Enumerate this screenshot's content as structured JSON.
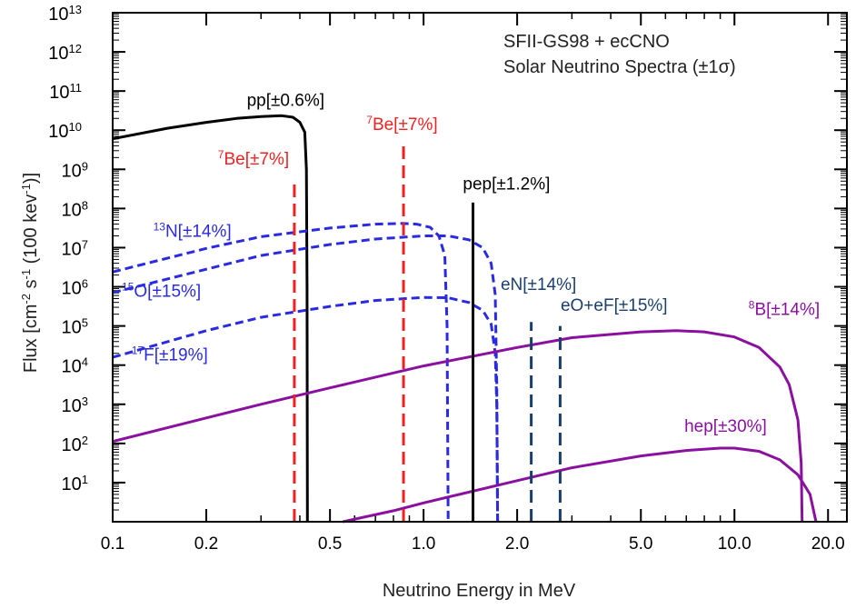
{
  "chart_data": {
    "type": "line",
    "title_lines": [
      "SFII-GS98 + ecCNO",
      "Solar Neutrino Spectra (±1σ)"
    ],
    "xlabel": "Neutrino Energy in MeV",
    "ylabel": "Flux [cm-2 s-1 (100 kev-1)]",
    "xscale": "log",
    "yscale": "log",
    "xlim": [
      0.1,
      23
    ],
    "ylim": [
      1,
      10000000000000
    ],
    "x_ticks": [
      {
        "v": 0.1,
        "label": "0.1"
      },
      {
        "v": 0.2,
        "label": "0.2"
      },
      {
        "v": 0.5,
        "label": "0.5"
      },
      {
        "v": 1.0,
        "label": "1.0"
      },
      {
        "v": 2.0,
        "label": "2.0"
      },
      {
        "v": 5.0,
        "label": "5.0"
      },
      {
        "v": 10.0,
        "label": "10.0"
      },
      {
        "v": 20.0,
        "label": "20.0"
      }
    ],
    "y_ticks": [
      {
        "v": 1,
        "base": "10",
        "exp": "1"
      },
      {
        "v": 2,
        "base": "10",
        "exp": "2"
      },
      {
        "v": 3,
        "base": "10",
        "exp": "3"
      },
      {
        "v": 4,
        "base": "10",
        "exp": "4"
      },
      {
        "v": 5,
        "base": "10",
        "exp": "5"
      },
      {
        "v": 6,
        "base": "10",
        "exp": "6"
      },
      {
        "v": 7,
        "base": "10",
        "exp": "7"
      },
      {
        "v": 8,
        "base": "10",
        "exp": "8"
      },
      {
        "v": 9,
        "base": "10",
        "exp": "9"
      },
      {
        "v": 10,
        "base": "10",
        "exp": "10"
      },
      {
        "v": 11,
        "base": "10",
        "exp": "11"
      },
      {
        "v": 12,
        "base": "10",
        "exp": "12"
      },
      {
        "v": 13,
        "base": "10",
        "exp": "13"
      }
    ],
    "colors": {
      "pp": "#000000",
      "be7": "#ee2222",
      "pep": "#000000",
      "cno": "#2a2ae0",
      "ec": "#1a3f6f",
      "b8": "#8b10a0"
    },
    "series": [
      {
        "key": "pp",
        "style": "solid",
        "log_points": [
          [
            0.1,
            9.78
          ],
          [
            0.15,
            10.05
          ],
          [
            0.2,
            10.2
          ],
          [
            0.25,
            10.3
          ],
          [
            0.3,
            10.35
          ],
          [
            0.35,
            10.37
          ],
          [
            0.38,
            10.33
          ],
          [
            0.4,
            10.2
          ],
          [
            0.415,
            9.95
          ],
          [
            0.42,
            9.0
          ],
          [
            0.422,
            6.0
          ],
          [
            0.423,
            0.0
          ]
        ]
      },
      {
        "key": "cno",
        "style": "dashed",
        "log_points": [
          [
            0.1,
            6.38
          ],
          [
            0.2,
            6.98
          ],
          [
            0.3,
            7.28
          ],
          [
            0.5,
            7.5
          ],
          [
            0.7,
            7.6
          ],
          [
            0.85,
            7.62
          ],
          [
            0.95,
            7.6
          ],
          [
            1.05,
            7.52
          ],
          [
            1.12,
            7.3
          ],
          [
            1.17,
            6.8
          ],
          [
            1.19,
            5.0
          ],
          [
            1.2,
            0.0
          ]
        ]
      },
      {
        "key": "cno",
        "style": "dashed",
        "log_points": [
          [
            0.1,
            5.85
          ],
          [
            0.2,
            6.45
          ],
          [
            0.3,
            6.8
          ],
          [
            0.5,
            7.08
          ],
          [
            0.7,
            7.22
          ],
          [
            1.0,
            7.3
          ],
          [
            1.2,
            7.3
          ],
          [
            1.4,
            7.2
          ],
          [
            1.55,
            7.0
          ],
          [
            1.65,
            6.6
          ],
          [
            1.7,
            5.8
          ],
          [
            1.72,
            3.5
          ],
          [
            1.73,
            0.0
          ]
        ]
      },
      {
        "key": "cno",
        "style": "dashed",
        "log_points": [
          [
            0.1,
            4.2
          ],
          [
            0.2,
            4.88
          ],
          [
            0.3,
            5.22
          ],
          [
            0.5,
            5.5
          ],
          [
            0.7,
            5.65
          ],
          [
            1.0,
            5.73
          ],
          [
            1.2,
            5.72
          ],
          [
            1.4,
            5.6
          ],
          [
            1.55,
            5.4
          ],
          [
            1.65,
            5.05
          ],
          [
            1.7,
            4.3
          ],
          [
            1.72,
            3.0
          ],
          [
            1.73,
            0.0
          ]
        ]
      },
      {
        "key": "b8",
        "style": "solid",
        "log_points": [
          [
            0.1,
            2.05
          ],
          [
            0.2,
            2.65
          ],
          [
            0.3,
            3.0
          ],
          [
            0.5,
            3.42
          ],
          [
            1.0,
            3.98
          ],
          [
            2.0,
            4.45
          ],
          [
            3.0,
            4.7
          ],
          [
            5.0,
            4.85
          ],
          [
            6.5,
            4.88
          ],
          [
            8.0,
            4.85
          ],
          [
            10.0,
            4.72
          ],
          [
            12.0,
            4.45
          ],
          [
            14.0,
            3.95
          ],
          [
            15.0,
            3.5
          ],
          [
            16.0,
            2.6
          ],
          [
            16.4,
            1.5
          ],
          [
            16.5,
            0.0
          ]
        ]
      },
      {
        "key": "b8",
        "style": "solid",
        "log_points": [
          [
            0.55,
            0.0
          ],
          [
            0.8,
            0.28
          ],
          [
            1.0,
            0.48
          ],
          [
            2.0,
            1.05
          ],
          [
            3.0,
            1.38
          ],
          [
            5.0,
            1.68
          ],
          [
            7.0,
            1.82
          ],
          [
            9.0,
            1.88
          ],
          [
            10.0,
            1.88
          ],
          [
            12.0,
            1.8
          ],
          [
            14.0,
            1.58
          ],
          [
            16.0,
            1.2
          ],
          [
            17.5,
            0.7
          ],
          [
            18.3,
            0.0
          ]
        ]
      }
    ],
    "lines": [
      {
        "key": "be7",
        "style": "dashed",
        "x": 0.384,
        "top": 8.75
      },
      {
        "key": "be7",
        "style": "dashed",
        "x": 0.862,
        "top": 9.65
      },
      {
        "key": "pep",
        "style": "solid",
        "x": 1.442,
        "top": 8.15
      },
      {
        "key": "ec",
        "style": "dashed",
        "x": 2.22,
        "top": 5.1
      },
      {
        "key": "ec",
        "style": "dashed",
        "x": 2.75,
        "top": 5.0
      }
    ],
    "annotations": [
      {
        "key": "pp",
        "pre": "",
        "main": "pp[±0.6%]",
        "x": 0.27,
        "y": 10.62
      },
      {
        "key": "be7",
        "pre": "7",
        "main": "Be[±7%]",
        "x": 0.218,
        "y": 9.12
      },
      {
        "key": "be7",
        "pre": "7",
        "main": "Be[±7%]",
        "x": 0.655,
        "y": 10.0
      },
      {
        "key": "pep",
        "pre": "",
        "main": "pep[±1.2%]",
        "x": 1.338,
        "y": 8.48
      },
      {
        "key": "cno",
        "pre": "13",
        "main": "N[±14%]",
        "x": 0.135,
        "y": 7.28
      },
      {
        "key": "cno",
        "pre": "15",
        "main": "O[±15%]",
        "x": 0.107,
        "y": 5.75
      },
      {
        "key": "cno",
        "pre": "17",
        "main": "F[±19%]",
        "x": 0.115,
        "y": 4.12
      },
      {
        "key": "ec",
        "pre": "",
        "main": "eN[±14%]",
        "x": 1.77,
        "y": 5.92
      },
      {
        "key": "ec",
        "pre": "",
        "main": "eO+eF[±15%]",
        "x": 2.76,
        "y": 5.38
      },
      {
        "key": "b8",
        "pre": "8",
        "main": "B[±14%]",
        "x": 11.1,
        "y": 5.28
      },
      {
        "key": "b8",
        "pre": "",
        "main": "hep[±30%]",
        "x": 6.9,
        "y": 2.3
      }
    ]
  }
}
